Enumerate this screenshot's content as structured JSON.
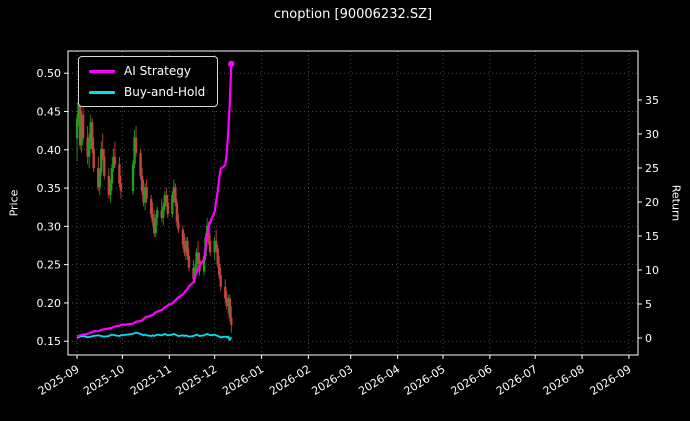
{
  "window": {
    "title": "cnoption [90006232.SZ]"
  },
  "chart_data": {
    "type": "candlestick+line",
    "title": "cnoption [90006232.SZ]",
    "ylabel_left": "Price",
    "ylabel_right": "Return",
    "grid": "dotted",
    "legend_position": "upper-left",
    "legend": [
      {
        "label": "AI Strategy",
        "color": "#ff00ff"
      },
      {
        "label": "Buy-and-Hold",
        "color": "#00e0ee"
      }
    ],
    "colors": {
      "background": "#000000",
      "text": "#ffffff",
      "grid": "#5a5a5a",
      "up": "#1e9e1e",
      "down": "#c0453f"
    },
    "x_ticks": [
      {
        "t": 0,
        "label": "2025-09"
      },
      {
        "t": 30,
        "label": "2025-10"
      },
      {
        "t": 61,
        "label": "2025-11"
      },
      {
        "t": 91,
        "label": "2025-12"
      },
      {
        "t": 122,
        "label": "2026-01"
      },
      {
        "t": 153,
        "label": "2026-02"
      },
      {
        "t": 181,
        "label": "2026-03"
      },
      {
        "t": 212,
        "label": "2026-04"
      },
      {
        "t": 242,
        "label": "2026-05"
      },
      {
        "t": 273,
        "label": "2026-06"
      },
      {
        "t": 303,
        "label": "2026-07"
      },
      {
        "t": 334,
        "label": "2026-08"
      },
      {
        "t": 365,
        "label": "2026-09"
      }
    ],
    "x_range": [
      -6,
      371
    ],
    "left_ticks": [
      0.15,
      0.2,
      0.25,
      0.3,
      0.35,
      0.4,
      0.45,
      0.5
    ],
    "left_range": [
      0.132,
      0.529
    ],
    "right_ticks": [
      0,
      5,
      10,
      15,
      20,
      25,
      30,
      35
    ],
    "right_range": [
      -2.5,
      42.2
    ],
    "candles": [
      [
        0,
        0.415,
        0.447,
        0.385,
        0.441
      ],
      [
        1,
        0.441,
        0.505,
        0.431,
        0.462
      ],
      [
        2,
        0.462,
        0.476,
        0.401,
        0.406
      ],
      [
        3,
        0.406,
        0.451,
        0.396,
        0.446
      ],
      [
        4,
        0.446,
        0.461,
        0.411,
        0.416
      ],
      [
        7,
        0.416,
        0.431,
        0.381,
        0.391
      ],
      [
        8,
        0.391,
        0.421,
        0.376,
        0.411
      ],
      [
        9,
        0.411,
        0.446,
        0.401,
        0.436
      ],
      [
        10,
        0.436,
        0.441,
        0.396,
        0.401
      ],
      [
        11,
        0.401,
        0.416,
        0.371,
        0.376
      ],
      [
        14,
        0.376,
        0.391,
        0.346,
        0.351
      ],
      [
        15,
        0.351,
        0.376,
        0.341,
        0.371
      ],
      [
        16,
        0.371,
        0.411,
        0.366,
        0.401
      ],
      [
        17,
        0.401,
        0.421,
        0.386,
        0.391
      ],
      [
        18,
        0.391,
        0.401,
        0.361,
        0.366
      ],
      [
        21,
        0.366,
        0.376,
        0.336,
        0.341
      ],
      [
        22,
        0.341,
        0.361,
        0.331,
        0.356
      ],
      [
        23,
        0.356,
        0.381,
        0.346,
        0.376
      ],
      [
        24,
        0.376,
        0.401,
        0.371,
        0.391
      ],
      [
        25,
        0.391,
        0.411,
        0.376,
        0.381
      ],
      [
        28,
        0.381,
        0.391,
        0.351,
        0.356
      ],
      [
        29,
        0.356,
        0.366,
        0.336,
        0.346
      ],
      [
        37,
        0.346,
        0.386,
        0.341,
        0.381
      ],
      [
        38,
        0.381,
        0.426,
        0.376,
        0.416
      ],
      [
        39,
        0.416,
        0.431,
        0.391,
        0.396
      ],
      [
        42,
        0.396,
        0.401,
        0.361,
        0.366
      ],
      [
        43,
        0.366,
        0.376,
        0.341,
        0.346
      ],
      [
        44,
        0.346,
        0.361,
        0.326,
        0.331
      ],
      [
        45,
        0.331,
        0.356,
        0.321,
        0.351
      ],
      [
        46,
        0.351,
        0.361,
        0.331,
        0.336
      ],
      [
        49,
        0.336,
        0.341,
        0.311,
        0.316
      ],
      [
        50,
        0.316,
        0.331,
        0.301,
        0.306
      ],
      [
        51,
        0.306,
        0.321,
        0.286,
        0.291
      ],
      [
        52,
        0.291,
        0.316,
        0.286,
        0.311
      ],
      [
        53,
        0.311,
        0.326,
        0.301,
        0.321
      ],
      [
        56,
        0.321,
        0.336,
        0.306,
        0.311
      ],
      [
        57,
        0.311,
        0.331,
        0.301,
        0.326
      ],
      [
        58,
        0.326,
        0.346,
        0.321,
        0.341
      ],
      [
        59,
        0.341,
        0.351,
        0.326,
        0.331
      ],
      [
        60,
        0.331,
        0.341,
        0.311,
        0.316
      ],
      [
        63,
        0.316,
        0.346,
        0.311,
        0.341
      ],
      [
        64,
        0.341,
        0.361,
        0.331,
        0.351
      ],
      [
        65,
        0.351,
        0.356,
        0.326,
        0.331
      ],
      [
        66,
        0.331,
        0.336,
        0.301,
        0.306
      ],
      [
        67,
        0.306,
        0.316,
        0.291,
        0.296
      ],
      [
        70,
        0.296,
        0.301,
        0.271,
        0.276
      ],
      [
        71,
        0.276,
        0.291,
        0.261,
        0.266
      ],
      [
        72,
        0.266,
        0.286,
        0.256,
        0.281
      ],
      [
        73,
        0.281,
        0.286,
        0.256,
        0.261
      ],
      [
        74,
        0.261,
        0.271,
        0.241,
        0.246
      ],
      [
        77,
        0.246,
        0.256,
        0.226,
        0.231
      ],
      [
        78,
        0.231,
        0.251,
        0.226,
        0.246
      ],
      [
        79,
        0.246,
        0.271,
        0.241,
        0.266
      ],
      [
        80,
        0.266,
        0.281,
        0.251,
        0.256
      ],
      [
        81,
        0.256,
        0.266,
        0.236,
        0.241
      ],
      [
        84,
        0.241,
        0.266,
        0.236,
        0.261
      ],
      [
        85,
        0.261,
        0.291,
        0.256,
        0.286
      ],
      [
        86,
        0.286,
        0.311,
        0.281,
        0.301
      ],
      [
        87,
        0.301,
        0.306,
        0.276,
        0.281
      ],
      [
        88,
        0.281,
        0.291,
        0.261,
        0.266
      ],
      [
        91,
        0.266,
        0.286,
        0.256,
        0.281
      ],
      [
        92,
        0.281,
        0.296,
        0.266,
        0.271
      ],
      [
        93,
        0.271,
        0.276,
        0.246,
        0.251
      ],
      [
        94,
        0.251,
        0.261,
        0.231,
        0.236
      ],
      [
        95,
        0.236,
        0.246,
        0.216,
        0.221
      ],
      [
        98,
        0.221,
        0.231,
        0.201,
        0.206
      ],
      [
        99,
        0.206,
        0.216,
        0.191,
        0.196
      ],
      [
        100,
        0.196,
        0.211,
        0.186,
        0.206
      ],
      [
        101,
        0.206,
        0.211,
        0.176,
        0.181
      ],
      [
        102,
        0.181,
        0.196,
        0.161,
        0.171
      ]
    ],
    "ai_strategy": [
      [
        0,
        0.2
      ],
      [
        2,
        0.4
      ],
      [
        4,
        0.5
      ],
      [
        7,
        0.6
      ],
      [
        9,
        0.8
      ],
      [
        11,
        1.0
      ],
      [
        14,
        1.0
      ],
      [
        16,
        1.2
      ],
      [
        18,
        1.3
      ],
      [
        21,
        1.4
      ],
      [
        23,
        1.5
      ],
      [
        25,
        1.7
      ],
      [
        28,
        1.8
      ],
      [
        29,
        1.9
      ],
      [
        37,
        2.1
      ],
      [
        39,
        2.4
      ],
      [
        42,
        2.5
      ],
      [
        43,
        2.6
      ],
      [
        44,
        2.8
      ],
      [
        45,
        3.0
      ],
      [
        46,
        3.1
      ],
      [
        49,
        3.3
      ],
      [
        50,
        3.4
      ],
      [
        51,
        3.6
      ],
      [
        52,
        3.8
      ],
      [
        53,
        3.9
      ],
      [
        56,
        4.1
      ],
      [
        57,
        4.3
      ],
      [
        58,
        4.5
      ],
      [
        59,
        4.6
      ],
      [
        60,
        4.8
      ],
      [
        63,
        5.1
      ],
      [
        64,
        5.3
      ],
      [
        65,
        5.5
      ],
      [
        66,
        5.8
      ],
      [
        67,
        6.0
      ],
      [
        70,
        6.4
      ],
      [
        71,
        6.7
      ],
      [
        72,
        7.0
      ],
      [
        73,
        7.2
      ],
      [
        74,
        7.6
      ],
      [
        77,
        8.2
      ],
      [
        78,
        9.0
      ],
      [
        79,
        9.6
      ],
      [
        80,
        10.1
      ],
      [
        81,
        10.6
      ],
      [
        84,
        11.6
      ],
      [
        85,
        13.2
      ],
      [
        86,
        15.0
      ],
      [
        87,
        16.3
      ],
      [
        88,
        17.0
      ],
      [
        91,
        18.6
      ],
      [
        92,
        20.1
      ],
      [
        93,
        21.6
      ],
      [
        94,
        23.4
      ],
      [
        95,
        24.9
      ],
      [
        98,
        25.4
      ],
      [
        99,
        27.2
      ],
      [
        100,
        30.5
      ],
      [
        101,
        34.5
      ],
      [
        102,
        40.3
      ]
    ],
    "buy_and_hold": [
      [
        0,
        0.0
      ],
      [
        2,
        0.2
      ],
      [
        4,
        0.3
      ],
      [
        7,
        0.1
      ],
      [
        9,
        0.2
      ],
      [
        11,
        0.3
      ],
      [
        14,
        0.4
      ],
      [
        16,
        0.3
      ],
      [
        18,
        0.2
      ],
      [
        21,
        0.3
      ],
      [
        23,
        0.5
      ],
      [
        25,
        0.4
      ],
      [
        28,
        0.3
      ],
      [
        29,
        0.4
      ],
      [
        37,
        0.6
      ],
      [
        39,
        0.8
      ],
      [
        42,
        0.6
      ],
      [
        43,
        0.5
      ],
      [
        44,
        0.4
      ],
      [
        45,
        0.5
      ],
      [
        46,
        0.4
      ],
      [
        49,
        0.3
      ],
      [
        50,
        0.4
      ],
      [
        51,
        0.3
      ],
      [
        52,
        0.4
      ],
      [
        53,
        0.5
      ],
      [
        56,
        0.4
      ],
      [
        57,
        0.5
      ],
      [
        58,
        0.6
      ],
      [
        59,
        0.5
      ],
      [
        60,
        0.4
      ],
      [
        63,
        0.5
      ],
      [
        64,
        0.6
      ],
      [
        65,
        0.5
      ],
      [
        66,
        0.4
      ],
      [
        67,
        0.3
      ],
      [
        70,
        0.4
      ],
      [
        71,
        0.3
      ],
      [
        72,
        0.4
      ],
      [
        73,
        0.3
      ],
      [
        74,
        0.2
      ],
      [
        77,
        0.3
      ],
      [
        78,
        0.4
      ],
      [
        79,
        0.5
      ],
      [
        80,
        0.4
      ],
      [
        81,
        0.3
      ],
      [
        84,
        0.4
      ],
      [
        85,
        0.5
      ],
      [
        86,
        0.6
      ],
      [
        87,
        0.5
      ],
      [
        88,
        0.4
      ],
      [
        91,
        0.5
      ],
      [
        92,
        0.4
      ],
      [
        93,
        0.3
      ],
      [
        94,
        0.2
      ],
      [
        95,
        0.1
      ],
      [
        98,
        0.2
      ],
      [
        99,
        0.1
      ],
      [
        100,
        0.2
      ],
      [
        101,
        -0.3
      ],
      [
        102,
        0.1
      ]
    ]
  }
}
